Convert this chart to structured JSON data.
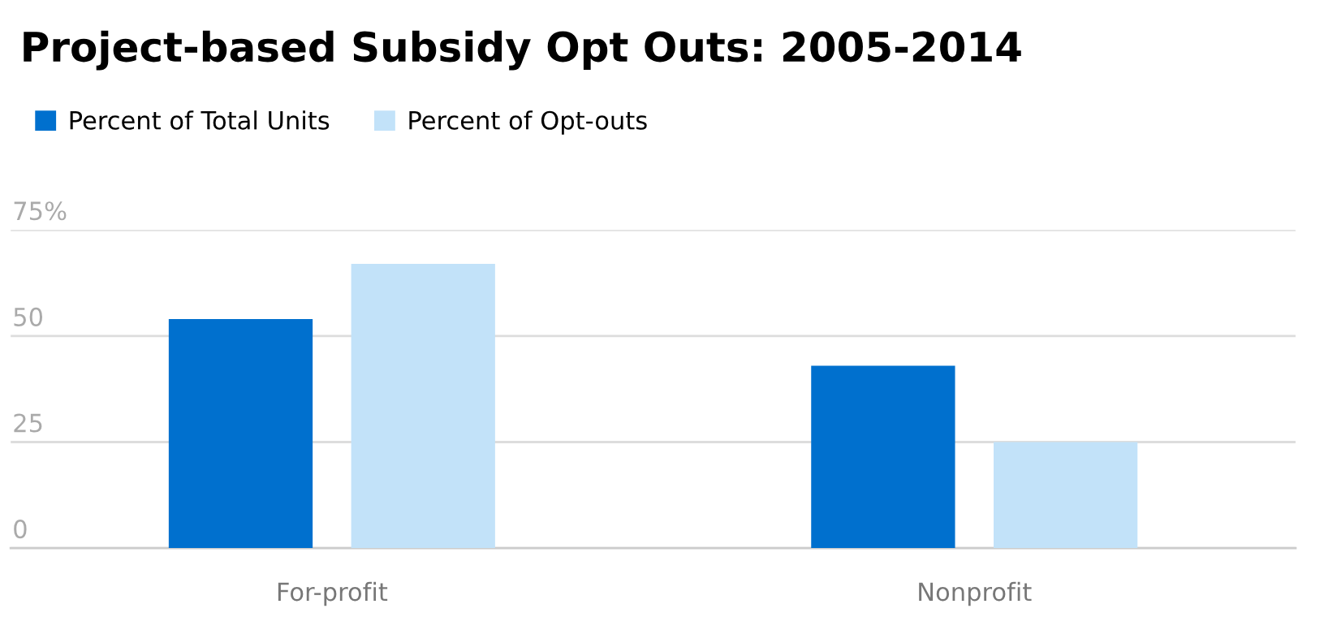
{
  "chart_data": {
    "type": "bar",
    "title": "Project-based Subsidy Opt Outs: 2005-2014",
    "categories": [
      "For-profit",
      "Nonprofit"
    ],
    "series": [
      {
        "name": "Percent of Total Units",
        "color": "#0070ce",
        "values": [
          54,
          43
        ]
      },
      {
        "name": "Percent of Opt-outs",
        "color": "#c2e2f9",
        "values": [
          67,
          25
        ]
      }
    ],
    "ylim": [
      0,
      75
    ],
    "yticks": [
      0,
      25,
      50,
      {
        "value": 75,
        "label": "75%"
      }
    ],
    "grid": "y",
    "legend": "top left"
  }
}
